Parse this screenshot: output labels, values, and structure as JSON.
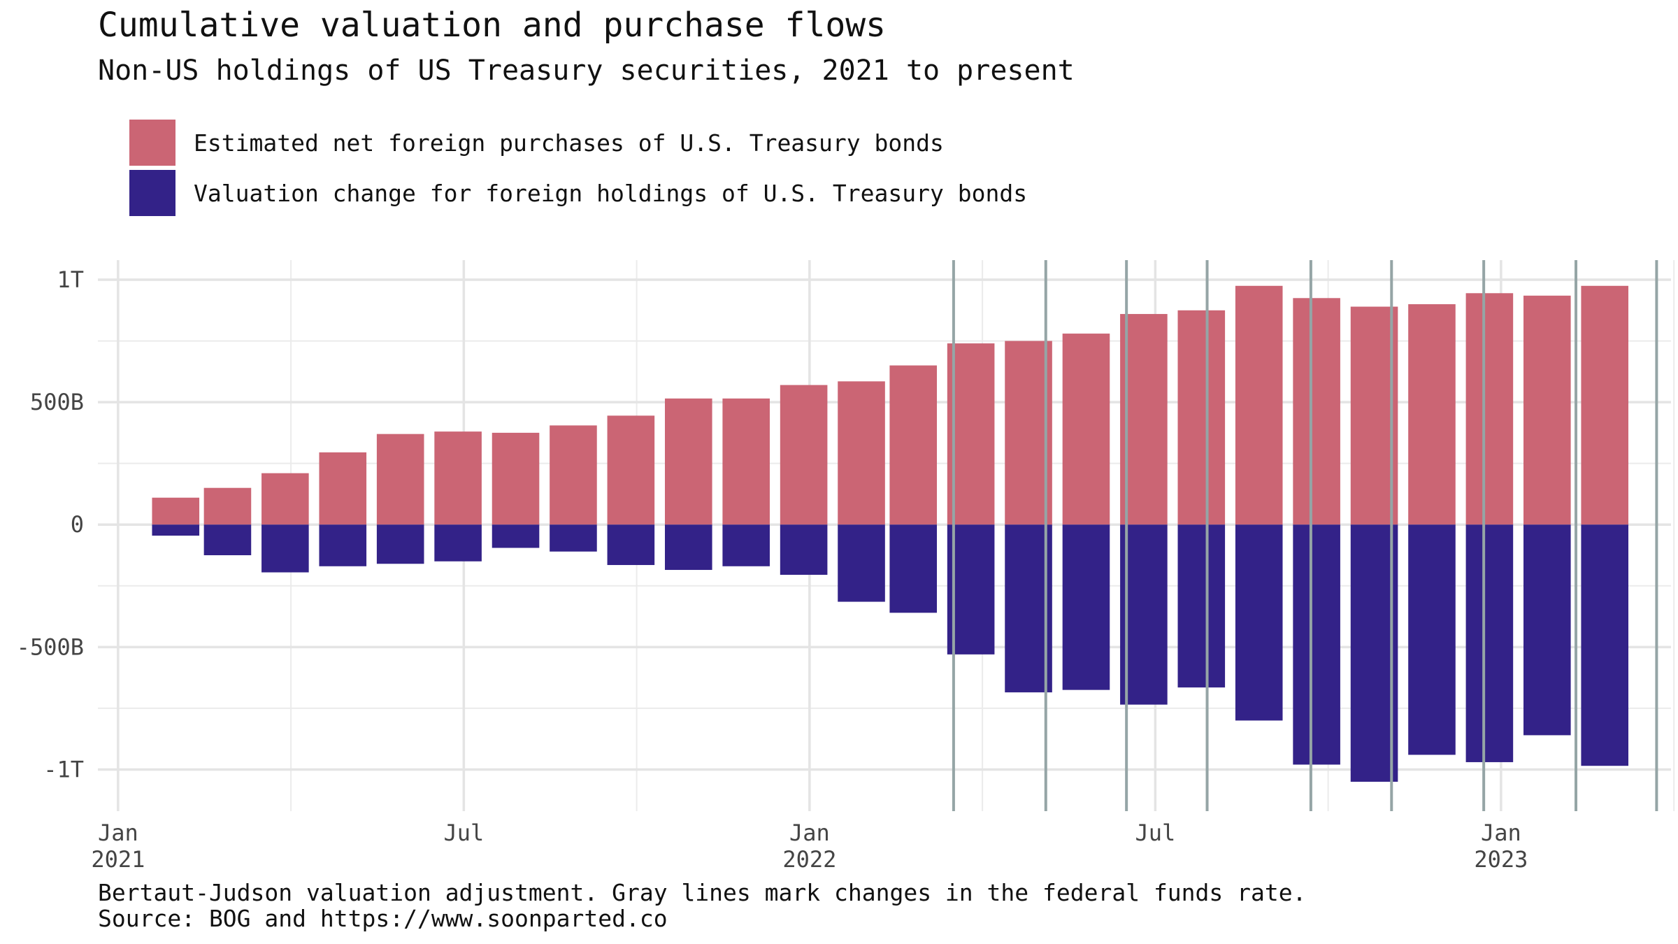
{
  "title": "Cumulative valuation and purchase flows",
  "subtitle": "Non-US holdings of US Treasury securities, 2021 to present",
  "legend": [
    {
      "label": "Estimated net foreign purchases of U.S. Treasury bonds",
      "color": "#CB6574"
    },
    {
      "label": "Valuation change for foreign holdings of U.S. Treasury bonds",
      "color": "#332288"
    }
  ],
  "caption": {
    "line1": "Bertaut-Judson valuation adjustment. Gray lines mark changes in the federal funds rate.",
    "line2": "Source: BOG and https://www.soonparted.co"
  },
  "chart_data": {
    "type": "bar",
    "stacking": "diverging",
    "title": "Cumulative valuation and purchase flows",
    "subtitle": "Non-US holdings of US Treasury securities, 2021 to present",
    "xlabel": "",
    "ylabel": "",
    "ylim": [
      -1.17,
      1.08
    ],
    "y_unit": "trillions USD",
    "y_ticks": [
      {
        "value": 1,
        "label": "1T"
      },
      {
        "value": 0.5,
        "label": "500B"
      },
      {
        "value": 0,
        "label": "0"
      },
      {
        "value": -0.5,
        "label": "-500B"
      },
      {
        "value": -1,
        "label": "-1T"
      }
    ],
    "x_ticks": [
      {
        "month_index": 0,
        "line1": "Jan",
        "line2": "2021"
      },
      {
        "month_index": 6,
        "line1": "Jul",
        "line2": ""
      },
      {
        "month_index": 12,
        "line1": "Jan",
        "line2": "2022"
      },
      {
        "month_index": 18,
        "line1": "Jul",
        "line2": ""
      },
      {
        "month_index": 24,
        "line1": "Jan",
        "line2": "2023"
      }
    ],
    "x_range_months": [
      -0.35,
      26.95
    ],
    "minor_grid_months": [
      3,
      9,
      15,
      21,
      27
    ],
    "categories": [
      "2021-02",
      "2021-03",
      "2021-04",
      "2021-05",
      "2021-06",
      "2021-07",
      "2021-08",
      "2021-09",
      "2021-10",
      "2021-11",
      "2021-12",
      "2022-01",
      "2022-02",
      "2022-03",
      "2022-04",
      "2022-05",
      "2022-06",
      "2022-07",
      "2022-08",
      "2022-09",
      "2022-10",
      "2022-11",
      "2022-12",
      "2023-01",
      "2023-02",
      "2023-03"
    ],
    "x_positions_months": [
      1,
      1.9,
      2.9,
      3.9,
      4.9,
      5.9,
      6.9,
      7.9,
      8.9,
      9.9,
      10.9,
      11.9,
      12.9,
      13.8,
      14.8,
      15.8,
      16.8,
      17.8,
      18.8,
      19.8,
      20.8,
      21.8,
      22.8,
      23.8,
      24.8,
      25.8
    ],
    "series": [
      {
        "name": "Estimated net foreign purchases of U.S. Treasury bonds",
        "color": "#CB6574",
        "values": [
          0.11,
          0.15,
          0.21,
          0.295,
          0.37,
          0.38,
          0.375,
          0.405,
          0.445,
          0.515,
          0.515,
          0.57,
          0.585,
          0.65,
          0.74,
          0.75,
          0.78,
          0.86,
          0.875,
          0.975,
          0.925,
          0.89,
          0.9,
          0.945,
          0.935,
          0.975
        ]
      },
      {
        "name": "Valuation change for foreign holdings of U.S. Treasury bonds",
        "color": "#332288",
        "values": [
          -0.045,
          -0.125,
          -0.195,
          -0.17,
          -0.16,
          -0.15,
          -0.095,
          -0.11,
          -0.165,
          -0.185,
          -0.17,
          -0.205,
          -0.315,
          -0.36,
          -0.53,
          -0.685,
          -0.675,
          -0.735,
          -0.665,
          -0.8,
          -0.98,
          -1.05,
          -0.94,
          -0.97,
          -0.86,
          -0.985
        ]
      }
    ],
    "rate_change_months": [
      14.5,
      16.1,
      17.5,
      18.9,
      20.7,
      22.1,
      23.7,
      25.3,
      26.7
    ],
    "rate_line_color": "#95A5A6",
    "grid": true,
    "legend_position": "top-left"
  }
}
